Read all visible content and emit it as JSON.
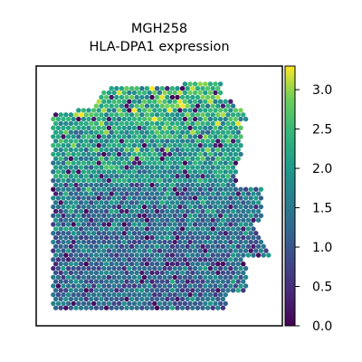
{
  "chart_data": {
    "type": "scatter",
    "title": "MGH258",
    "subtitle": "HLA-DPA1 expression",
    "xlabel": "",
    "ylabel": "",
    "colorbar": {
      "label": "",
      "range": [
        0.0,
        3.3
      ],
      "ticks": [
        0.0,
        0.5,
        1.0,
        1.5,
        2.0,
        2.5,
        3.0
      ],
      "tick_labels": [
        "0.0",
        "0.5",
        "1.0",
        "1.5",
        "2.0",
        "2.5",
        "3.0"
      ],
      "colormap": "viridis"
    },
    "grid": false,
    "legend": "none",
    "seed": 7
  },
  "colors": {
    "low": "#440154",
    "mid": "#21918c",
    "high": "#fde725",
    "frame": "#000000"
  }
}
